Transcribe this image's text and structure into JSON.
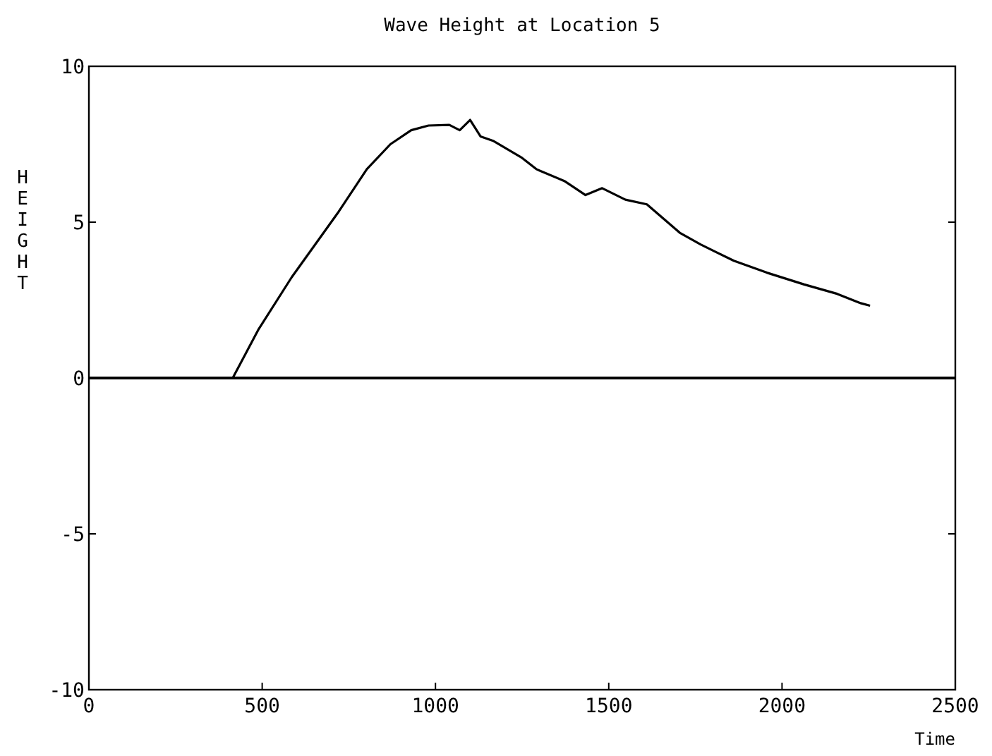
{
  "chart_data": {
    "type": "line",
    "title": "Wave Height at Location 5",
    "xlabel": "Time",
    "ylabel": "HEIGHT",
    "xlim": [
      0,
      2500
    ],
    "xticks": [
      0,
      500,
      1000,
      1500,
      2000,
      2500
    ],
    "ylim": [
      -10,
      10
    ],
    "yticks": [
      -10,
      -5,
      0,
      5,
      10
    ],
    "grid": false,
    "marker": "none",
    "line_style": "solid",
    "ref_lines": [
      {
        "axis": "y",
        "value": 0,
        "color": "#000000"
      }
    ],
    "series": [
      {
        "color": "#000000",
        "x": [
          415,
          490,
          585,
          721,
          802,
          870,
          930,
          980,
          1040,
          1070,
          1100,
          1130,
          1168,
          1250,
          1291,
          1372,
          1433,
          1481,
          1548,
          1610,
          1705,
          1766,
          1861,
          1956,
          2064,
          2159,
          2227,
          2254
        ],
        "values": [
          0,
          1.57,
          3.23,
          5.34,
          6.7,
          7.5,
          7.95,
          8.1,
          8.12,
          7.95,
          8.28,
          7.75,
          7.6,
          7.06,
          6.7,
          6.32,
          5.87,
          6.09,
          5.72,
          5.57,
          4.66,
          4.28,
          3.76,
          3.38,
          3.0,
          2.7,
          2.4,
          2.32
        ]
      }
    ]
  }
}
